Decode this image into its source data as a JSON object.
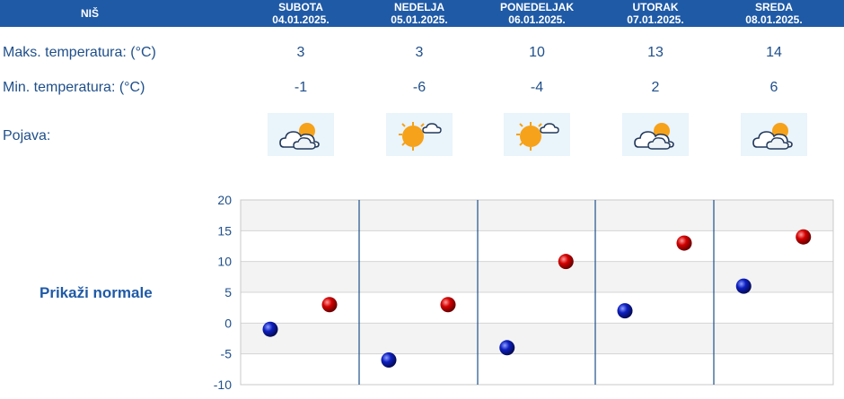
{
  "header": {
    "city": "NIŠ",
    "days": [
      {
        "name": "SUBOTA",
        "date": "04.01.2025."
      },
      {
        "name": "NEDELJA",
        "date": "05.01.2025."
      },
      {
        "name": "PONEDELJAK",
        "date": "06.01.2025."
      },
      {
        "name": "UTORAK",
        "date": "07.01.2025."
      },
      {
        "name": "SREDA",
        "date": "08.01.2025."
      }
    ]
  },
  "rows": {
    "max_label": "Maks. temperatura: (°C)",
    "min_label": "Min. temperatura: (°C)",
    "weather_label": "Pojava:"
  },
  "max_temps": [
    "3",
    "3",
    "10",
    "13",
    "14"
  ],
  "min_temps": [
    "-1",
    "-6",
    "-4",
    "2",
    "6"
  ],
  "weather_icons": [
    "partly-cloudy-icon",
    "mostly-sunny-icon",
    "mostly-sunny-icon",
    "partly-cloudy-icon",
    "partly-cloudy-icon"
  ],
  "normals_link": "Prikaži normale",
  "colors": {
    "header_bg": "#1f5aa6",
    "text": "#1f4f8a",
    "max_marker": "#cc0000",
    "min_marker": "#0a1fb5",
    "divider": "#1f4f8a"
  },
  "chart_data": {
    "type": "scatter",
    "categories": [
      "SUBOTA",
      "NEDELJA",
      "PONEDELJAK",
      "UTORAK",
      "SREDA"
    ],
    "series": [
      {
        "values": [
          -1,
          -6,
          -4,
          2,
          6
        ]
      },
      {
        "values": [
          3,
          3,
          10,
          13,
          14
        ]
      }
    ],
    "ylim": [
      -10,
      20
    ],
    "yticks": [
      20,
      15,
      10,
      5,
      0,
      -5,
      -10
    ],
    "grid": true
  }
}
